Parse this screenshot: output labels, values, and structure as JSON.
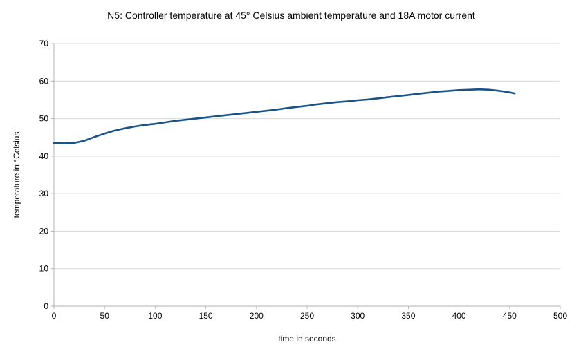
{
  "chart_data": {
    "type": "line",
    "title": "N5: Controller temperature at 45° Celsius ambient temperature and 18A motor current",
    "xlabel": "time in seconds",
    "ylabel": "temperature in °Celsius",
    "xlim": [
      0,
      500
    ],
    "ylim": [
      0,
      70
    ],
    "xticks": [
      0,
      50,
      100,
      150,
      200,
      250,
      300,
      350,
      400,
      450,
      500
    ],
    "yticks": [
      0,
      10,
      20,
      30,
      40,
      50,
      60,
      70
    ],
    "grid": "horizontal",
    "legend_position": "none",
    "line_color": "#17538a",
    "axis_color": "#b3b3b3",
    "grid_color": "#d9d9d9",
    "series": [
      {
        "x": [
          0,
          10,
          20,
          30,
          40,
          50,
          60,
          70,
          80,
          90,
          100,
          110,
          120,
          130,
          140,
          150,
          160,
          170,
          180,
          190,
          200,
          210,
          220,
          230,
          240,
          250,
          260,
          270,
          280,
          290,
          300,
          310,
          320,
          330,
          340,
          350,
          360,
          370,
          380,
          390,
          400,
          410,
          420,
          430,
          440,
          450,
          455
        ],
        "y": [
          43.5,
          43.4,
          43.5,
          44.1,
          45.1,
          46.0,
          46.8,
          47.4,
          47.9,
          48.3,
          48.6,
          49.0,
          49.4,
          49.7,
          50.0,
          50.3,
          50.6,
          50.9,
          51.2,
          51.5,
          51.8,
          52.1,
          52.4,
          52.8,
          53.1,
          53.4,
          53.8,
          54.1,
          54.4,
          54.6,
          54.9,
          55.1,
          55.4,
          55.7,
          56.0,
          56.3,
          56.6,
          56.9,
          57.2,
          57.4,
          57.6,
          57.7,
          57.8,
          57.7,
          57.4,
          57.0,
          56.7
        ]
      }
    ]
  }
}
